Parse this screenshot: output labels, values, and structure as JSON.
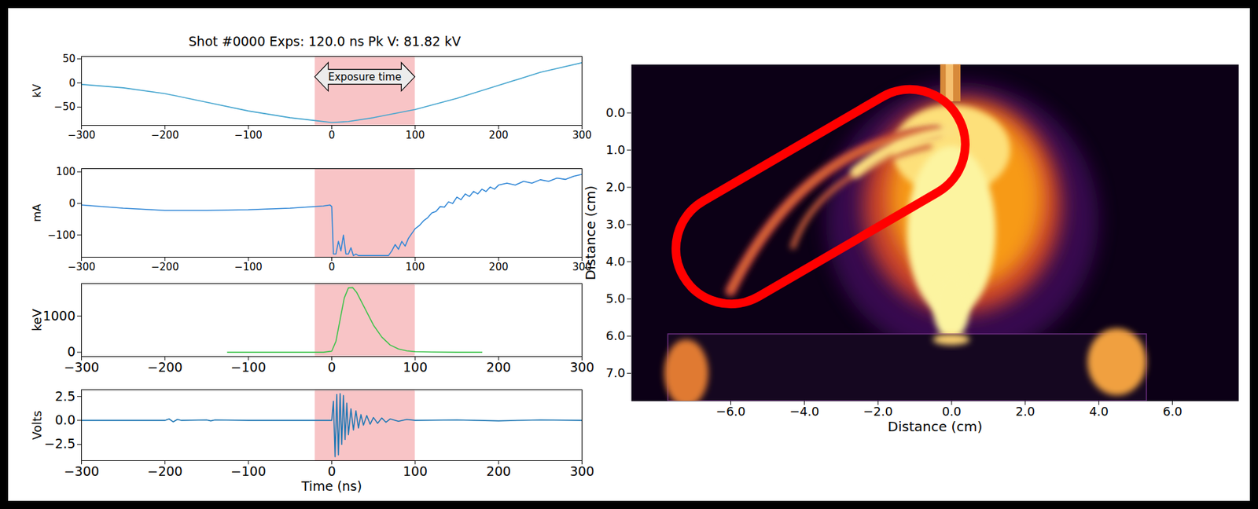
{
  "chart_data": [
    {
      "type": "line",
      "title": "Shot #0000 Exps: 120.0 ns Pk V: 81.82 kV",
      "ylabel": "kV",
      "annotation": "Exposure time",
      "exposure": [
        -20,
        100
      ],
      "xlim": [
        -300,
        300
      ],
      "xticks": [
        -300,
        -200,
        -100,
        0,
        100,
        200,
        300
      ],
      "ylim": [
        -88,
        55
      ],
      "yticks": [
        -50,
        0,
        50
      ],
      "color": "#45a5cf",
      "x": [
        -300,
        -250,
        -200,
        -150,
        -100,
        -50,
        -20,
        0,
        20,
        50,
        100,
        150,
        200,
        250,
        300
      ],
      "values": [
        -3,
        -10,
        -22,
        -40,
        -58,
        -72,
        -78,
        -82,
        -80,
        -72,
        -55,
        -32,
        -5,
        22,
        42
      ]
    },
    {
      "type": "line",
      "ylabel": "mA",
      "exposure": [
        -20,
        100
      ],
      "xlim": [
        -300,
        300
      ],
      "xticks": [
        -300,
        -200,
        -100,
        0,
        100,
        200,
        300
      ],
      "ylim": [
        -170,
        110
      ],
      "yticks": [
        -100,
        0,
        100
      ],
      "color": "#2f86d6",
      "x": [
        -300,
        -250,
        -200,
        -150,
        -100,
        -50,
        -10,
        -2,
        0,
        2,
        5,
        8,
        11,
        14,
        17,
        20,
        23,
        26,
        29,
        32,
        35,
        40,
        50,
        60,
        68,
        72,
        76,
        80,
        84,
        88,
        92,
        96,
        100,
        105,
        110,
        115,
        120,
        125,
        130,
        135,
        140,
        145,
        150,
        155,
        160,
        165,
        170,
        175,
        180,
        185,
        190,
        195,
        200,
        210,
        220,
        230,
        240,
        250,
        260,
        270,
        280,
        290,
        300
      ],
      "values": [
        -5,
        -15,
        -22,
        -22,
        -20,
        -15,
        -8,
        -5,
        -10,
        -160,
        -160,
        -120,
        -150,
        -100,
        -160,
        -160,
        -140,
        -165,
        -160,
        -165,
        -165,
        -165,
        -165,
        -165,
        -165,
        -150,
        -130,
        -145,
        -120,
        -135,
        -110,
        -95,
        -80,
        -70,
        -55,
        -45,
        -30,
        -25,
        -10,
        -12,
        5,
        0,
        20,
        12,
        30,
        22,
        38,
        30,
        45,
        38,
        52,
        45,
        58,
        64,
        58,
        70,
        64,
        75,
        70,
        80,
        76,
        86,
        92
      ]
    },
    {
      "type": "line",
      "ylabel": "keV",
      "exposure": [
        -20,
        100
      ],
      "xlim": [
        -300,
        300
      ],
      "xticks": [
        -300,
        -200,
        -100,
        0,
        100,
        200,
        300
      ],
      "ylim": [
        -120,
        1900
      ],
      "yticks": [
        0,
        1000
      ],
      "color": "#3cc34a",
      "x": [
        -125,
        -50,
        -10,
        0,
        5,
        10,
        15,
        20,
        25,
        30,
        40,
        50,
        60,
        70,
        80,
        90,
        100,
        120,
        150,
        180
      ],
      "values": [
        0,
        0,
        0,
        30,
        300,
        900,
        1500,
        1780,
        1790,
        1650,
        1200,
        750,
        420,
        200,
        90,
        40,
        15,
        5,
        0,
        0
      ]
    },
    {
      "type": "line",
      "ylabel": "Volts",
      "xlabel": "Time (ns)",
      "exposure": [
        -20,
        100
      ],
      "xlim": [
        -300,
        300
      ],
      "xticks": [
        -300,
        -200,
        -100,
        0,
        100,
        200,
        300
      ],
      "ylim": [
        -4.2,
        3.2
      ],
      "yticks": [
        {
          "value": -2.5,
          "label": "−2.5"
        },
        {
          "value": 0,
          "label": "0.0"
        },
        {
          "value": 2.5,
          "label": "2.5"
        }
      ],
      "color": "#1f77b4",
      "x": [
        -300,
        -200,
        -195,
        -190,
        -185,
        -180,
        -150,
        -145,
        -140,
        -100,
        -5,
        0,
        2,
        4,
        6,
        8,
        10,
        12,
        14,
        16,
        18,
        20,
        23,
        26,
        29,
        32,
        35,
        38,
        42,
        46,
        50,
        55,
        60,
        65,
        70,
        80,
        90,
        100,
        150,
        200,
        250,
        300
      ],
      "values": [
        0,
        0,
        0.15,
        -0.15,
        0.1,
        0,
        0.05,
        -0.05,
        0.05,
        0,
        0,
        0,
        2.0,
        -3.8,
        2.7,
        -3.6,
        2.8,
        -2.5,
        2.6,
        -2.0,
        1.8,
        -1.5,
        1.2,
        -1.0,
        1.0,
        -0.8,
        0.6,
        -0.5,
        0.5,
        -0.4,
        0.3,
        -0.3,
        0.25,
        -0.2,
        0.15,
        -0.1,
        0.1,
        0,
        0.05,
        -0.05,
        0.05,
        0
      ]
    },
    {
      "type": "image",
      "xlabel": "Distance (cm)",
      "ylabel": "Distance (cm)",
      "xlim": [
        -8.7,
        7.8
      ],
      "xticks": [
        {
          "value": -6,
          "label": "−6.0"
        },
        {
          "value": -4,
          "label": "−4.0"
        },
        {
          "value": -2,
          "label": "−2.0"
        },
        {
          "value": 0,
          "label": "0.0"
        },
        {
          "value": 2,
          "label": "2.0"
        },
        {
          "value": 4,
          "label": "4.0"
        },
        {
          "value": 6,
          "label": "6.0"
        }
      ],
      "ylim": [
        7.75,
        -1.3
      ],
      "yticks": [
        {
          "value": 0,
          "label": "0.0"
        },
        {
          "value": 1,
          "label": "1.0"
        },
        {
          "value": 2,
          "label": "2.0"
        },
        {
          "value": 3,
          "label": "3.0"
        },
        {
          "value": 4,
          "label": "4.0"
        },
        {
          "value": 5,
          "label": "5.0"
        },
        {
          "value": 6,
          "label": "6.0"
        },
        {
          "value": 7,
          "label": "7.0"
        }
      ]
    }
  ]
}
